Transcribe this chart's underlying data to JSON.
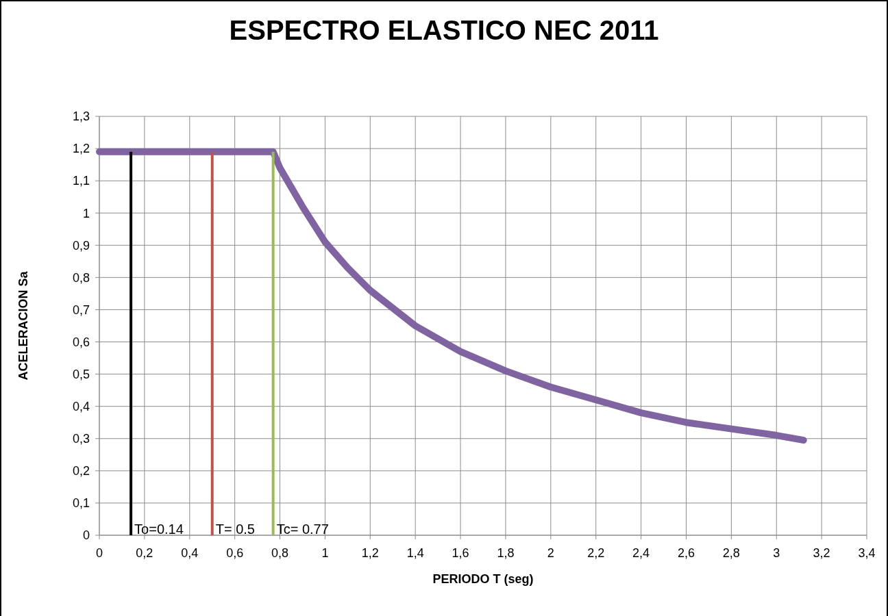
{
  "chart_data": {
    "type": "line",
    "title": "ESPECTRO ELASTICO NEC 2011",
    "xlabel": "PERIODO T (seg)",
    "ylabel": "ACELERACION Sa",
    "xlim": [
      0,
      3.4
    ],
    "ylim": [
      0,
      1.3
    ],
    "xticks": [
      0,
      {
        "value": 0.2,
        "label": "0,2"
      },
      {
        "value": 0.4,
        "label": "0,4"
      },
      {
        "value": 0.6,
        "label": "0,6"
      },
      {
        "value": 0.8,
        "label": "0,8"
      },
      1,
      {
        "value": 1.2,
        "label": "1,2"
      },
      {
        "value": 1.4,
        "label": "1,4"
      },
      {
        "value": 1.6,
        "label": "1,6"
      },
      {
        "value": 1.8,
        "label": "1,8"
      },
      2,
      {
        "value": 2.2,
        "label": "2,2"
      },
      {
        "value": 2.4,
        "label": "2,4"
      },
      {
        "value": 2.6,
        "label": "2,6"
      },
      {
        "value": 2.8,
        "label": "2,8"
      },
      3,
      {
        "value": 3.2,
        "label": "3,2"
      },
      {
        "value": 3.4,
        "label": "3,4"
      }
    ],
    "yticks": [
      0,
      {
        "value": 0.1,
        "label": "0,1"
      },
      {
        "value": 0.2,
        "label": "0,2"
      },
      {
        "value": 0.3,
        "label": "0,3"
      },
      {
        "value": 0.4,
        "label": "0,4"
      },
      {
        "value": 0.5,
        "label": "0,5"
      },
      {
        "value": 0.6,
        "label": "0,6"
      },
      {
        "value": 0.7,
        "label": "0,7"
      },
      {
        "value": 0.8,
        "label": "0,8"
      },
      {
        "value": 0.9,
        "label": "0,9"
      },
      1,
      {
        "value": 1.1,
        "label": "1,1"
      },
      {
        "value": 1.2,
        "label": "1,2"
      },
      {
        "value": 1.3,
        "label": "1,3"
      }
    ],
    "grid": true,
    "marker": "none",
    "line_style": "solid",
    "series": [
      {
        "color": "#8064a2",
        "x": [
          0,
          0.77,
          0.8,
          0.9,
          1,
          1.1,
          1.2,
          1.4,
          1.6,
          1.8,
          2,
          2.2,
          2.4,
          2.6,
          2.8,
          3,
          3.12
        ],
        "values": [
          1.19,
          1.19,
          1.14,
          1.02,
          0.91,
          0.83,
          0.76,
          0.65,
          0.57,
          0.51,
          0.46,
          0.42,
          0.38,
          0.35,
          0.33,
          0.31,
          0.295
        ]
      },
      {
        "color": "#000000",
        "x": [
          0.14,
          0.14
        ],
        "values": [
          0,
          1.19
        ]
      },
      {
        "color": "#c0504d",
        "x": [
          0.5,
          0.5
        ],
        "values": [
          0,
          1.19
        ]
      },
      {
        "color": "#9bbb59",
        "x": [
          0.77,
          0.77
        ],
        "values": [
          0,
          1.19
        ]
      }
    ],
    "annotations": [
      {
        "text": "To=0.14",
        "x": 0.14,
        "y": 0
      },
      {
        "text": "T= 0.5",
        "x": 0.5,
        "y": 0
      },
      {
        "text": "Tc= 0.77",
        "x": 0.77,
        "y": 0
      }
    ]
  }
}
